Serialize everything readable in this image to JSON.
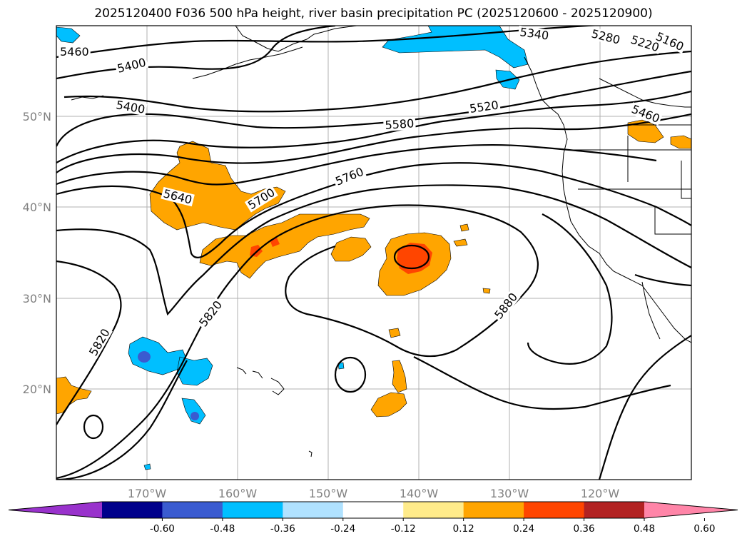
{
  "title": "2025120400 F036 500 hPa height, river basin precipitation PC (2025120600 - 2025120900)",
  "lat_labels": [
    "50°N",
    "40°N",
    "30°N",
    "20°N"
  ],
  "lon_labels": [
    "170°W",
    "160°W",
    "150°W",
    "140°W",
    "130°W",
    "120°W"
  ],
  "contour_labels": [
    "5460",
    "5400",
    "5400",
    "5340",
    "5280",
    "5220",
    "5160",
    "5520",
    "5580",
    "5460",
    "5640",
    "5700",
    "5760",
    "5820",
    "5820",
    "5880"
  ],
  "colorbar": {
    "colors": [
      "#9932cc",
      "#00008b",
      "#3a5bd0",
      "#00bfff",
      "#b0e2ff",
      "#ffffff",
      "#ffeb8a",
      "#ffa500",
      "#ff4500",
      "#b22222",
      "#ff85a8"
    ],
    "labels": [
      "-0.60",
      "-0.48",
      "-0.36",
      "-0.24",
      "-0.12",
      "0.12",
      "0.24",
      "0.36",
      "0.48",
      "0.60"
    ]
  },
  "colors": {
    "positive_low": "#ffa500",
    "positive_mid": "#ff4500",
    "negative_low": "#00bfff",
    "negative_mid": "#3a5bd0",
    "grid": "#b0b0b0",
    "contour": "#000000"
  }
}
